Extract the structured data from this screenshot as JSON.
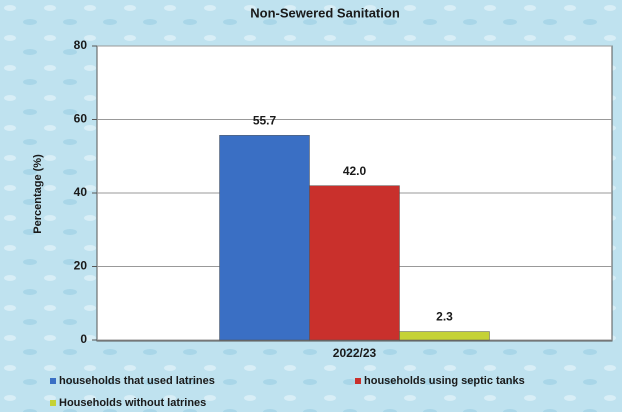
{
  "chart_data": {
    "type": "bar",
    "title": "Non-Sewered Sanitation",
    "ylabel": "Percentage (%)",
    "categories": [
      "2022/23"
    ],
    "series": [
      {
        "name": "households that used latrines",
        "color": "#3a6fc4",
        "values": [
          55.7
        ]
      },
      {
        "name": "households using septic tanks",
        "color": "#c9302c",
        "values": [
          42
        ],
        "value_labels": [
          "42.0"
        ]
      },
      {
        "name": "Households without latrines",
        "color": "#c5d236",
        "values": [
          2.3
        ]
      }
    ],
    "ylim": [
      0,
      80
    ],
    "yticks": [
      0,
      20,
      40,
      60,
      80
    ],
    "grid": true
  }
}
